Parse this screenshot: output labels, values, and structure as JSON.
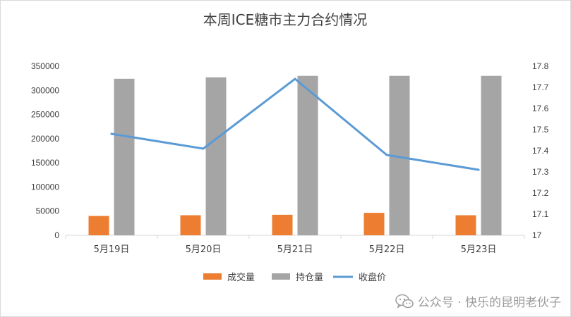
{
  "chart_data": {
    "type": "bar",
    "title": "本周ICE糖市主力合约情况",
    "categories": [
      "5月19日",
      "5月20日",
      "5月21日",
      "5月22日",
      "5月23日"
    ],
    "series": [
      {
        "name": "成交量",
        "kind": "bar",
        "axis": "left",
        "color": "#ED7D31",
        "values": [
          40000,
          41500,
          42500,
          46500,
          41500
        ]
      },
      {
        "name": "持仓量",
        "kind": "bar",
        "axis": "left",
        "color": "#A5A5A5",
        "values": [
          324000,
          327000,
          330000,
          330000,
          330000
        ]
      },
      {
        "name": "收盘价",
        "kind": "line",
        "axis": "right",
        "color": "#5B9BD5",
        "values": [
          17.48,
          17.41,
          17.74,
          17.38,
          17.31
        ]
      }
    ],
    "y_left": {
      "min": 0,
      "max": 350000,
      "ticks": [
        "0",
        "50000",
        "100000",
        "150000",
        "200000",
        "250000",
        "300000",
        "350000"
      ]
    },
    "y_right": {
      "min": 17,
      "max": 17.8,
      "ticks": [
        "17",
        "17.1",
        "17.2",
        "17.3",
        "17.4",
        "17.5",
        "17.6",
        "17.7",
        "17.8"
      ]
    },
    "grid": false,
    "legend_position": "bottom"
  },
  "watermark": {
    "icon": "wechat-icon",
    "text": "公众号 · 快乐的昆明老伙子"
  }
}
